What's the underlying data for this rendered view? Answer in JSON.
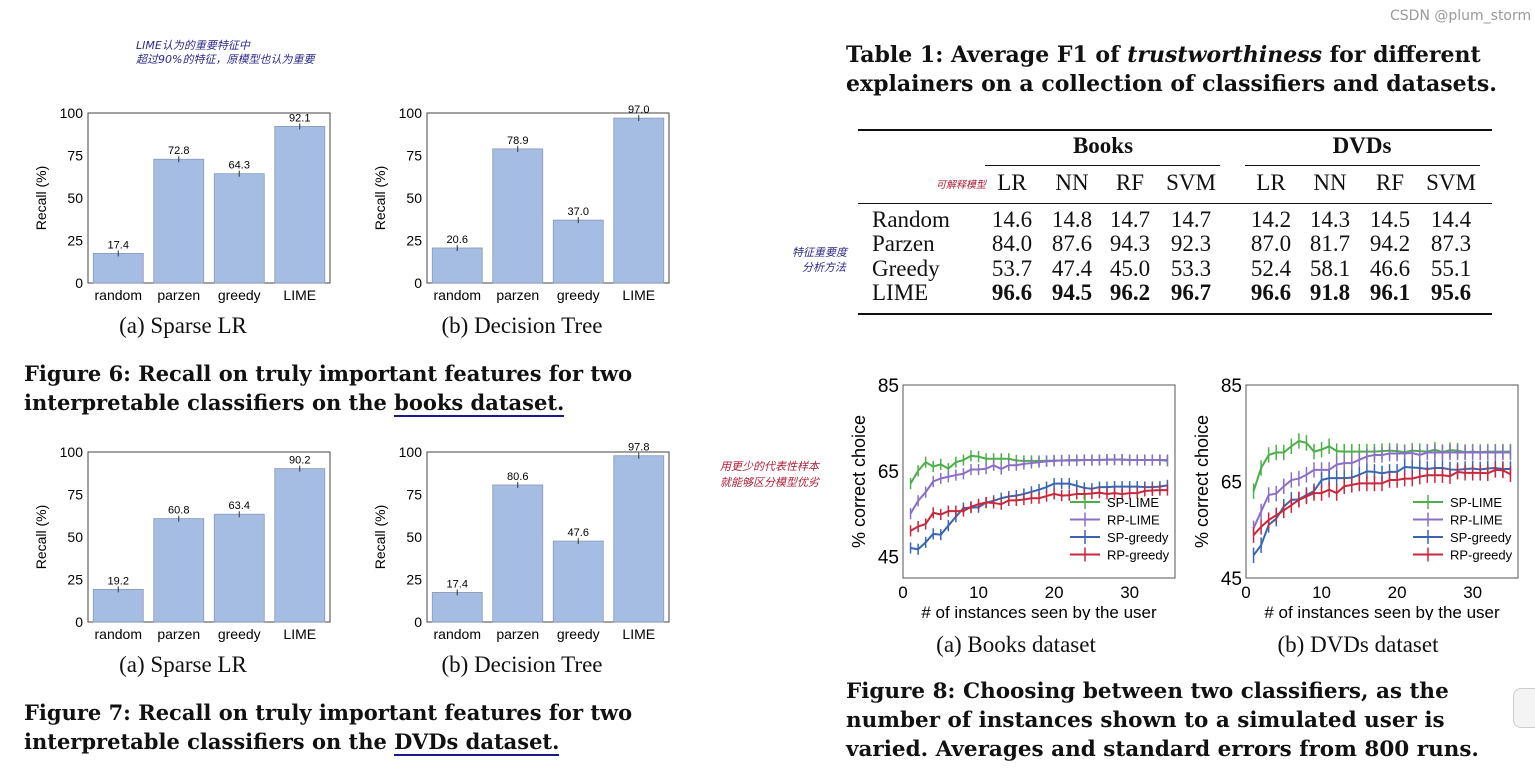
{
  "notes": {
    "fig6_note_line1": "LIME认为的重要特征中",
    "fig6_note_line2": "超过90%的特征，原模型也认为重要",
    "table_note_models": "可解释模型",
    "table_note_methods_line1": "特征重要度",
    "table_note_methods_line2": "分析方法",
    "fig8_note_line1": "用更少的代表性样本",
    "fig8_note_line2": "就能够区分模型优劣"
  },
  "figure6": {
    "caption_line1": "Figure 6: Recall on truly important features for two",
    "caption_line2_prefix": "interpretable classifiers on the ",
    "caption_line2_link": "books dataset.",
    "sub_a": "(a) Sparse LR",
    "sub_b": "(b) Decision Tree"
  },
  "figure7": {
    "caption_line1": "Figure 7: Recall on truly important features for two",
    "caption_line2_prefix": "interpretable classifiers on the ",
    "caption_line2_link": "DVDs dataset.",
    "sub_a": "(a) Sparse LR",
    "sub_b": "(b) Decision Tree"
  },
  "table1": {
    "caption_line1_prefix": "Table 1: Average F1 of ",
    "caption_line1_italic": "trustworthiness",
    "caption_line1_suffix": " for different",
    "caption_line2": "explainers on a collection of classifiers and datasets.",
    "groups": [
      "Books",
      "DVDs"
    ],
    "columns": [
      "LR",
      "NN",
      "RF",
      "SVM",
      "LR",
      "NN",
      "RF",
      "SVM"
    ],
    "rows": [
      {
        "label": "Random",
        "values": [
          "14.6",
          "14.8",
          "14.7",
          "14.7",
          "14.2",
          "14.3",
          "14.5",
          "14.4"
        ],
        "bold": false
      },
      {
        "label": "Parzen",
        "values": [
          "84.0",
          "87.6",
          "94.3",
          "92.3",
          "87.0",
          "81.7",
          "94.2",
          "87.3"
        ],
        "bold": false
      },
      {
        "label": "Greedy",
        "values": [
          "53.7",
          "47.4",
          "45.0",
          "53.3",
          "52.4",
          "58.1",
          "46.6",
          "55.1"
        ],
        "bold": false
      },
      {
        "label": "LIME",
        "values": [
          "96.6",
          "94.5",
          "96.2",
          "96.7",
          "96.6",
          "91.8",
          "96.1",
          "95.6"
        ],
        "bold": true
      }
    ]
  },
  "figure8": {
    "caption_line1": "Figure 8: Choosing between two classifiers, as the",
    "caption_line2": "number of instances shown to a simulated user is",
    "caption_line3": "varied. Averages and standard errors from 800 runs.",
    "sub_a": "(a) Books dataset",
    "sub_b": "(b) DVDs dataset"
  },
  "watermark": "CSDN @plum_storm",
  "chart_data": [
    {
      "id": "fig6a",
      "type": "bar",
      "categories": [
        "random",
        "parzen",
        "greedy",
        "LIME"
      ],
      "values": [
        17.4,
        72.8,
        64.3,
        92.1
      ],
      "ylabel": "Recall (%)",
      "ylim": [
        0,
        100
      ],
      "yticks": [
        0,
        25,
        50,
        75,
        100
      ],
      "bar_color": "#a6bde3",
      "data_labels": true
    },
    {
      "id": "fig6b",
      "type": "bar",
      "categories": [
        "random",
        "parzen",
        "greedy",
        "LIME"
      ],
      "values": [
        20.6,
        78.9,
        37.0,
        97.0
      ],
      "ylabel": "Recall (%)",
      "ylim": [
        0,
        100
      ],
      "yticks": [
        0,
        25,
        50,
        75,
        100
      ],
      "bar_color": "#a6bde3",
      "data_labels": true
    },
    {
      "id": "fig7a",
      "type": "bar",
      "categories": [
        "random",
        "parzen",
        "greedy",
        "LIME"
      ],
      "values": [
        19.2,
        60.8,
        63.4,
        90.2
      ],
      "ylabel": "Recall (%)",
      "ylim": [
        0,
        100
      ],
      "yticks": [
        0,
        25,
        50,
        75,
        100
      ],
      "bar_color": "#a6bde3",
      "data_labels": true
    },
    {
      "id": "fig7b",
      "type": "bar",
      "categories": [
        "random",
        "parzen",
        "greedy",
        "LIME"
      ],
      "values": [
        17.4,
        80.6,
        47.6,
        97.8
      ],
      "ylabel": "Recall (%)",
      "ylim": [
        0,
        100
      ],
      "yticks": [
        0,
        25,
        50,
        75,
        100
      ],
      "bar_color": "#a6bde3",
      "data_labels": true
    },
    {
      "id": "fig8a",
      "type": "line",
      "xlabel": "# of instances seen by the user",
      "ylabel": "% correct choice",
      "xlim": [
        0,
        36
      ],
      "ylim": [
        40,
        85
      ],
      "xticks": [
        0,
        10,
        20,
        30
      ],
      "yticks": [
        45,
        65,
        85
      ],
      "legend": "bottom-right",
      "error_bars": true,
      "stderr": 1.3,
      "x": [
        1,
        2,
        3,
        4,
        5,
        6,
        7,
        8,
        9,
        10,
        11,
        12,
        13,
        14,
        15,
        16,
        17,
        18,
        19,
        20,
        21,
        22,
        23,
        24,
        25,
        26,
        27,
        28,
        29,
        30,
        31,
        32,
        33,
        34,
        35
      ],
      "series": [
        {
          "name": "SP-LIME",
          "color": "#4daf4a",
          "values": [
            62,
            65,
            67,
            66,
            66.5,
            65.5,
            67,
            67.5,
            68.5,
            68.3,
            67.8,
            67.8,
            67.8,
            67.8,
            67.4,
            67.3,
            67.3,
            67.3,
            67.3,
            67.4,
            67.4,
            67.5,
            67.5,
            67.5,
            67.5,
            67.5,
            67.6,
            67.6,
            67.6,
            67.5,
            67.5,
            67.5,
            67.5,
            67.5,
            67.3
          ]
        },
        {
          "name": "RP-LIME",
          "color": "#8a6fc7",
          "values": [
            55,
            58,
            60,
            62.5,
            63.2,
            63.6,
            64,
            64.3,
            65.3,
            65.3,
            65.5,
            66.3,
            65.4,
            66.3,
            66.3,
            66.6,
            66.8,
            67,
            67.2,
            67.3,
            67.4,
            67.4,
            67.4,
            67.5,
            67.5,
            67.5,
            67.6,
            67.6,
            67.6,
            67.5,
            67.5,
            67.5,
            67.5,
            67.5,
            67.5
          ]
        },
        {
          "name": "SP-greedy",
          "color": "#3b65b0",
          "values": [
            47,
            46.7,
            48.3,
            50.3,
            50.1,
            52.2,
            54.3,
            56.3,
            56.4,
            56.5,
            57.6,
            58,
            58.6,
            59,
            59.2,
            59.6,
            60.1,
            60.6,
            61.2,
            62,
            62,
            62,
            61.5,
            61,
            60.8,
            61.2,
            61.2,
            61.3,
            61.3,
            61.3,
            61.3,
            61.2,
            61.2,
            61.3,
            61.6
          ]
        },
        {
          "name": "RP-greedy",
          "color": "#c8283c",
          "values": [
            51,
            52,
            52.6,
            55.2,
            54.8,
            55.6,
            55.6,
            55.6,
            56.6,
            57.2,
            57.6,
            57.5,
            57.2,
            58.1,
            58.1,
            58.3,
            58.6,
            58.6,
            59.1,
            59.6,
            59.2,
            59.3,
            59.6,
            59.6,
            59.7,
            59.9,
            59.6,
            59.8,
            59.6,
            59.8,
            59.8,
            60.3,
            60.4,
            60.5,
            60.5
          ]
        }
      ]
    },
    {
      "id": "fig8b",
      "type": "line",
      "xlabel": "# of instances seen by the user",
      "ylabel": "% correct choice",
      "xlim": [
        0,
        36
      ],
      "ylim": [
        45,
        85
      ],
      "xticks": [
        0,
        10,
        20,
        30
      ],
      "yticks": [
        45,
        65,
        85
      ],
      "legend": "bottom-right",
      "error_bars": true,
      "stderr": 1.6,
      "x": [
        1,
        2,
        3,
        4,
        5,
        6,
        7,
        8,
        9,
        10,
        11,
        12,
        13,
        14,
        15,
        16,
        17,
        18,
        19,
        20,
        21,
        22,
        23,
        24,
        25,
        26,
        27,
        28,
        29,
        30,
        31,
        32,
        33,
        34,
        35
      ],
      "series": [
        {
          "name": "SP-LIME",
          "color": "#4daf4a",
          "values": [
            63,
            67.8,
            70.5,
            71,
            71,
            72.3,
            73.4,
            73,
            71.2,
            71.6,
            72.3,
            71.3,
            71.2,
            71.2,
            71.2,
            71.2,
            71.2,
            71.3,
            71.4,
            71.3,
            71.1,
            71.4,
            71.3,
            71.2,
            71.6,
            71.1,
            71.5,
            71.4,
            71.1,
            71.2,
            71.1,
            71.2,
            71.2,
            71.2,
            71.2
          ]
        },
        {
          "name": "RP-LIME",
          "color": "#8a6fc7",
          "values": [
            55.3,
            58.8,
            62.2,
            62.5,
            64,
            65.3,
            65.6,
            66.4,
            67.4,
            67.4,
            67.4,
            68.5,
            68.8,
            68.8,
            69.5,
            70.2,
            70.5,
            70.5,
            70.8,
            70.8,
            70.8,
            70.9,
            70.5,
            71,
            71,
            71,
            71,
            71,
            71,
            71,
            71,
            71,
            71,
            71,
            71
          ]
        },
        {
          "name": "SP-greedy",
          "color": "#3b65b0",
          "values": [
            49.7,
            51.8,
            56,
            57.3,
            59.8,
            61.2,
            61.3,
            62.2,
            63,
            65.3,
            65.7,
            65.7,
            65.7,
            65.8,
            66.4,
            67.1,
            67,
            66.7,
            67,
            67,
            68,
            67.9,
            67.8,
            67.6,
            67.8,
            67.8,
            67.5,
            67.4,
            67.6,
            67.7,
            67.5,
            67.7,
            67.8,
            67.6,
            67.6
          ]
        },
        {
          "name": "RP-greedy",
          "color": "#c8283c",
          "values": [
            53.9,
            55.6,
            57,
            58,
            59,
            60.1,
            61.2,
            61.9,
            62.6,
            62.6,
            63.3,
            62.6,
            64,
            64.3,
            64.6,
            64.6,
            64.6,
            64.6,
            65.3,
            65.3,
            65.6,
            65.6,
            66,
            66.3,
            66.3,
            66.3,
            66.1,
            67,
            66.8,
            66.8,
            66.8,
            66.7,
            67.4,
            67.3,
            66.5
          ]
        }
      ]
    }
  ]
}
